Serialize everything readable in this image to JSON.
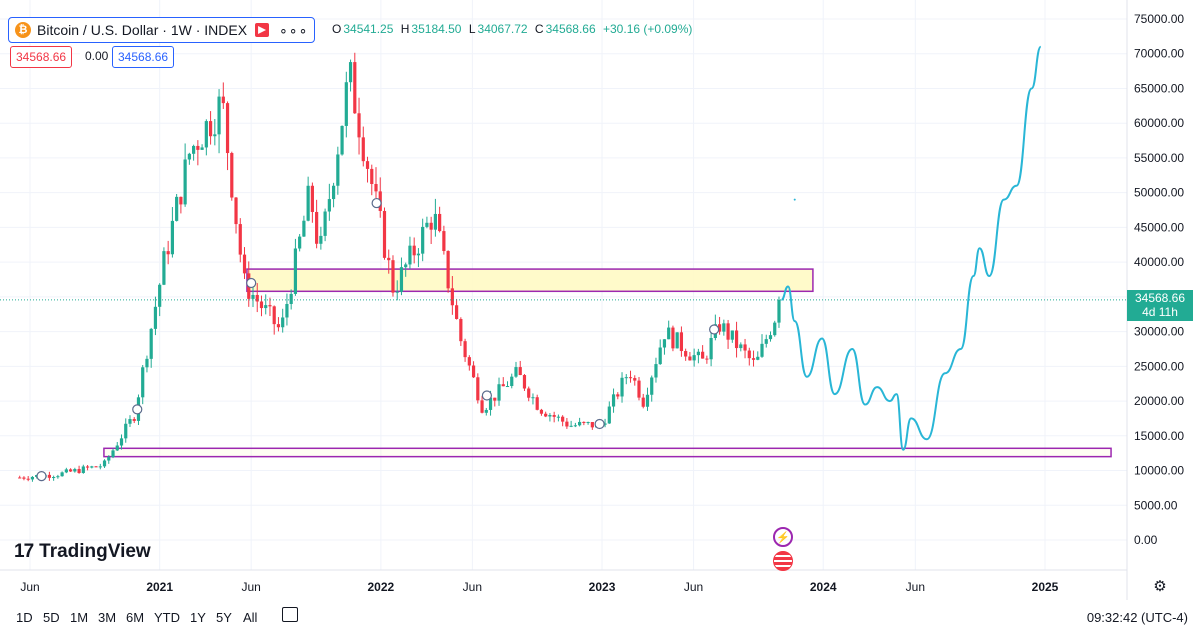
{
  "symbol": {
    "title": "Bitcoin / U.S. Dollar · 1W · INDEX",
    "icon": "bitcoin-icon",
    "more": "∘∘∘"
  },
  "ohlc": {
    "o_label": "O",
    "o": "34541.25",
    "h_label": "H",
    "h": "35184.50",
    "l_label": "L",
    "l": "34067.72",
    "c_label": "C",
    "c": "34568.66",
    "change": "+30.16 (+0.09%)"
  },
  "values": {
    "sell": "34568.66",
    "spread": "0.00",
    "buy": "34568.66"
  },
  "price_tag": {
    "price": "34568.66",
    "countdown": "4d 11h"
  },
  "brand": {
    "logo_mark": "17",
    "name": "TradingView"
  },
  "timeframes": [
    "1D",
    "5D",
    "1M",
    "3M",
    "6M",
    "YTD",
    "1Y",
    "5Y",
    "All"
  ],
  "clock": "09:32:42 (UTC-4)",
  "colors": {
    "up": "#22ab94",
    "down": "#f23645",
    "zone": "#9c27b0",
    "zone_fill": "#fff9c4",
    "projection": "#29b6d6",
    "accent": "#2962ff"
  },
  "chart_data": {
    "type": "candlestick",
    "title": "Bitcoin / U.S. Dollar · 1W · INDEX",
    "y_ticks": [
      "75000.00",
      "70000.00",
      "65000.00",
      "60000.00",
      "55000.00",
      "50000.00",
      "45000.00",
      "40000.00",
      "35000.00",
      "30000.00",
      "25000.00",
      "20000.00",
      "15000.00",
      "10000.00",
      "5000.00",
      "0.00"
    ],
    "x_ticks": [
      "Jun",
      "2021",
      "Jun",
      "2022",
      "Jun",
      "2023",
      "Jun",
      "2024",
      "Jun",
      "2025"
    ],
    "ylim": [
      0,
      75000
    ],
    "last_price": 34568.66,
    "anchors": [
      [
        "2020-05-15",
        9000
      ],
      [
        "2020-07-20",
        9500
      ],
      [
        "2020-10-01",
        10800
      ],
      [
        "2020-11-20",
        18000
      ],
      [
        "2021-01-08",
        40000
      ],
      [
        "2021-02-20",
        56000
      ],
      [
        "2021-04-14",
        63000
      ],
      [
        "2021-05-20",
        37000
      ],
      [
        "2021-07-20",
        30000
      ],
      [
        "2021-09-06",
        50000
      ],
      [
        "2021-09-22",
        41000
      ],
      [
        "2021-11-10",
        67000
      ],
      [
        "2022-01-22",
        36000
      ],
      [
        "2022-03-29",
        47000
      ],
      [
        "2022-05-12",
        29000
      ],
      [
        "2022-06-18",
        19000
      ],
      [
        "2022-08-14",
        24000
      ],
      [
        "2022-09-20",
        19000
      ],
      [
        "2022-11-09",
        16500
      ],
      [
        "2022-12-31",
        16600
      ],
      [
        "2023-02-15",
        24500
      ],
      [
        "2023-03-10",
        20000
      ],
      [
        "2023-04-14",
        30000
      ],
      [
        "2023-06-15",
        25500
      ],
      [
        "2023-07-14",
        31000
      ],
      [
        "2023-09-11",
        25000
      ],
      [
        "2023-10-24",
        34568
      ]
    ],
    "zones": [
      {
        "from": "2021-05-25",
        "to": "2023-12-15",
        "top": 39000,
        "bottom": 35800
      },
      {
        "from": "2020-10-01",
        "to": "2025-04-20",
        "top": 13200,
        "bottom": 12000
      }
    ],
    "projection": [
      [
        "2023-10-24",
        34568
      ],
      [
        "2023-11-04",
        36500
      ],
      [
        "2023-11-15",
        31500
      ],
      [
        "2023-12-05",
        23500
      ],
      [
        "2023-12-30",
        29000
      ],
      [
        "2024-01-20",
        21000
      ],
      [
        "2024-02-18",
        27500
      ],
      [
        "2024-03-10",
        19500
      ],
      [
        "2024-03-30",
        22000
      ],
      [
        "2024-04-20",
        20000
      ],
      [
        "2024-05-01",
        21000
      ],
      [
        "2024-05-12",
        13000
      ],
      [
        "2024-05-25",
        17500
      ],
      [
        "2024-06-20",
        14500
      ],
      [
        "2024-07-20",
        24000
      ],
      [
        "2024-08-15",
        27500
      ],
      [
        "2024-09-05",
        38000
      ],
      [
        "2024-09-15",
        42000
      ],
      [
        "2024-10-01",
        38000
      ],
      [
        "2024-10-25",
        49000
      ],
      [
        "2024-11-15",
        51000
      ],
      [
        "2024-12-10",
        65000
      ],
      [
        "2024-12-25",
        71000
      ]
    ],
    "markers": [
      {
        "date": "2020-06-20",
        "price": 9200
      },
      {
        "date": "2020-11-25",
        "price": 18800
      },
      {
        "date": "2021-06-01",
        "price": 37000
      },
      {
        "date": "2021-12-25",
        "price": 48500
      },
      {
        "date": "2022-06-25",
        "price": 20800
      },
      {
        "date": "2022-12-28",
        "price": 16700
      },
      {
        "date": "2023-07-05",
        "price": 30300
      }
    ]
  }
}
